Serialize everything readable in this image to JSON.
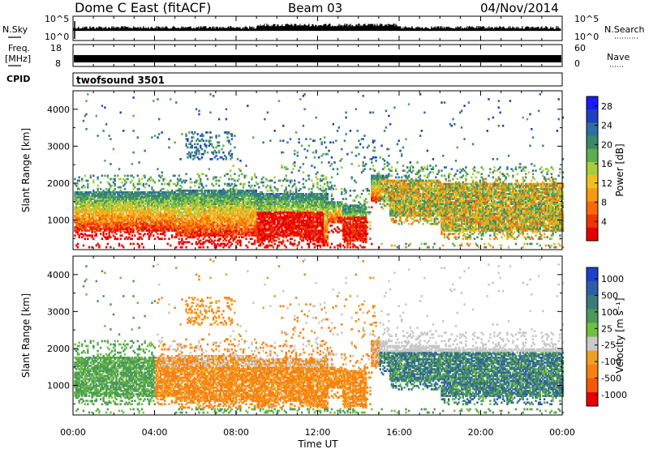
{
  "header": {
    "station": "Dome C East (fitACF)",
    "beam": "Beam 03",
    "date": "04/Nov/2014"
  },
  "top_panels": {
    "nsky_label": "N.Sky",
    "nsky_max": "10^5",
    "nsky_min": "10^0",
    "nsearch_label": "N.Search",
    "nsearch_max": "10^5",
    "nsearch_min": "10^0",
    "freq_label": "Freq.",
    "freq_unit": "[MHz]",
    "freq_max": "18",
    "freq_min": "8",
    "nave_label": "Nave",
    "nave_max": "60",
    "nave_min": "0",
    "cpid_label": "CPID",
    "cpid_value": "twofsound 3501"
  },
  "chart_data": [
    {
      "type": "heatmap",
      "title": "",
      "ylabel": "Slant Range [km]",
      "ylim": [
        200,
        4500
      ],
      "yticks": [
        "1000",
        "2000",
        "3000",
        "4000"
      ],
      "xlim": [
        0,
        24
      ],
      "colorbar": {
        "label": "Power [dB]",
        "ticks": [
          "4",
          "8",
          "12",
          "16",
          "20",
          "24",
          "28"
        ],
        "range": [
          0,
          30
        ],
        "colors": [
          "#1a1aff",
          "#2040c0",
          "#2e6ea6",
          "#3a8a6a",
          "#5cae4e",
          "#a8cc3c",
          "#f0c020",
          "#f89a10",
          "#f86a08",
          "#f03404",
          "#e80000"
        ]
      }
    },
    {
      "type": "heatmap",
      "title": "",
      "ylabel": "Slant Range [km]",
      "ylim": [
        200,
        4500
      ],
      "yticks": [
        "1000",
        "2000",
        "3000",
        "4000"
      ],
      "xlim": [
        0,
        24
      ],
      "xlabel": "Time UT",
      "xticks": [
        "00:00",
        "04:00",
        "08:00",
        "12:00",
        "16:00",
        "20:00",
        "00:00"
      ],
      "colorbar": {
        "label": "Velocity [m s⁻¹]",
        "ticks": [
          "1000",
          "500",
          "100",
          "25",
          "-25",
          "-100",
          "-500",
          "-1000"
        ],
        "range": [
          -1200,
          1200
        ],
        "colors": [
          "#2040c8",
          "#2e5ea8",
          "#3a7a78",
          "#4c9a58",
          "#70c040",
          "#c8c8c8",
          "#f0a020",
          "#f88010",
          "#f45806",
          "#e80000"
        ]
      }
    }
  ]
}
